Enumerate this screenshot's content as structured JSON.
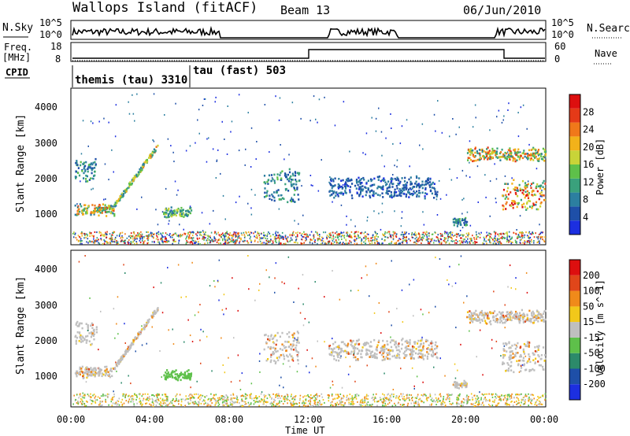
{
  "header": {
    "station": "Wallops Island (fitACF)",
    "beam": "Beam 13",
    "date": "06/Jun/2010"
  },
  "noise_panel": {
    "left_label": "N.Sky",
    "right_label": "N.Search",
    "left_ticks": [
      "10^5",
      "10^0"
    ],
    "right_ticks": [
      "10^5",
      "10^0"
    ]
  },
  "freq_panel": {
    "left_label_top": "Freq.",
    "left_label_bottom": "[MHz]",
    "right_label": "Nave",
    "left_ticks": [
      "18",
      "8"
    ],
    "right_ticks": [
      "60",
      "0"
    ]
  },
  "cpid": {
    "label": "CPID",
    "segments": [
      {
        "name": "themis (tau) 3310",
        "start_hour": 0,
        "end_hour": 6
      },
      {
        "name": "tau (fast) 503",
        "start_hour": 6,
        "end_hour": 24
      }
    ]
  },
  "x_axis": {
    "label": "Time UT",
    "ticks": [
      "00:00",
      "04:00",
      "08:00",
      "12:00",
      "16:00",
      "20:00",
      "00:00"
    ],
    "range_hours": [
      0,
      24
    ]
  },
  "chart_data": [
    {
      "type": "heatmap",
      "title": "",
      "xlabel": "",
      "ylabel": "Slant Range [km]",
      "ylim": [
        180,
        4600
      ],
      "yticks": [
        "1000",
        "2000",
        "3000",
        "4000"
      ],
      "colorbar": {
        "label": "Power [dB]",
        "ticks": [
          "4",
          "8",
          "12",
          "16",
          "20",
          "24",
          "28"
        ],
        "colors": [
          "#1c2fe0",
          "#1e4fa8",
          "#2c7fa0",
          "#3aa17c",
          "#5ec04a",
          "#c8d438",
          "#f2b21a",
          "#f0781a",
          "#e53a18",
          "#dd0f0f"
        ]
      },
      "features": [
        {
          "band": "early-morning",
          "start_hour": 0.1,
          "end_hour": 2.1,
          "range_km": [
            1050,
            1300
          ],
          "peak_db": 24
        },
        {
          "band": "rising-arc",
          "start_hour": 2.1,
          "end_hour": 4.3,
          "range_km": [
            1300,
            3000
          ],
          "peak_db": 20
        },
        {
          "band": "upper-early",
          "start_hour": 0.1,
          "end_hour": 1.2,
          "range_km": [
            2000,
            2600
          ],
          "peak_db": 12
        },
        {
          "band": "short-patch",
          "start_hour": 4.6,
          "end_hour": 6.0,
          "range_km": [
            1000,
            1200
          ],
          "peak_db": 16
        },
        {
          "band": "midday-streak",
          "start_hour": 9.7,
          "end_hour": 11.5,
          "range_km": [
            1400,
            2300
          ],
          "peak_db": 12
        },
        {
          "band": "afternoon-band",
          "start_hour": 13.0,
          "end_hour": 18.5,
          "range_km": [
            1550,
            2100
          ],
          "peak_db": 8
        },
        {
          "band": "evening-patch",
          "start_hour": 19.3,
          "end_hour": 20.0,
          "range_km": [
            750,
            900
          ],
          "peak_db": 12
        },
        {
          "band": "late-upper",
          "start_hour": 20.0,
          "end_hour": 24.0,
          "range_km": [
            2600,
            2900
          ],
          "peak_db": 24
        },
        {
          "band": "late-lower",
          "start_hour": 21.8,
          "end_hour": 24.0,
          "range_km": [
            1200,
            2000
          ],
          "peak_db": 28
        }
      ]
    },
    {
      "type": "heatmap",
      "title": "",
      "xlabel": "Time UT",
      "ylabel": "Slant Range [km]",
      "ylim": [
        180,
        4600
      ],
      "yticks": [
        "1000",
        "2000",
        "3000",
        "4000"
      ],
      "colorbar": {
        "label": "Velocity [m s^-1]",
        "ticks": [
          "200",
          "100",
          "50",
          "15",
          "-15",
          "-50",
          "-100",
          "-200"
        ],
        "colors": [
          "#1c2fe0",
          "#1e4fa8",
          "#2c8a6a",
          "#5ec04a",
          "#bfbfbf",
          "#f2c81a",
          "#f08a1a",
          "#e0461a",
          "#dd0f0f"
        ]
      }
    }
  ]
}
